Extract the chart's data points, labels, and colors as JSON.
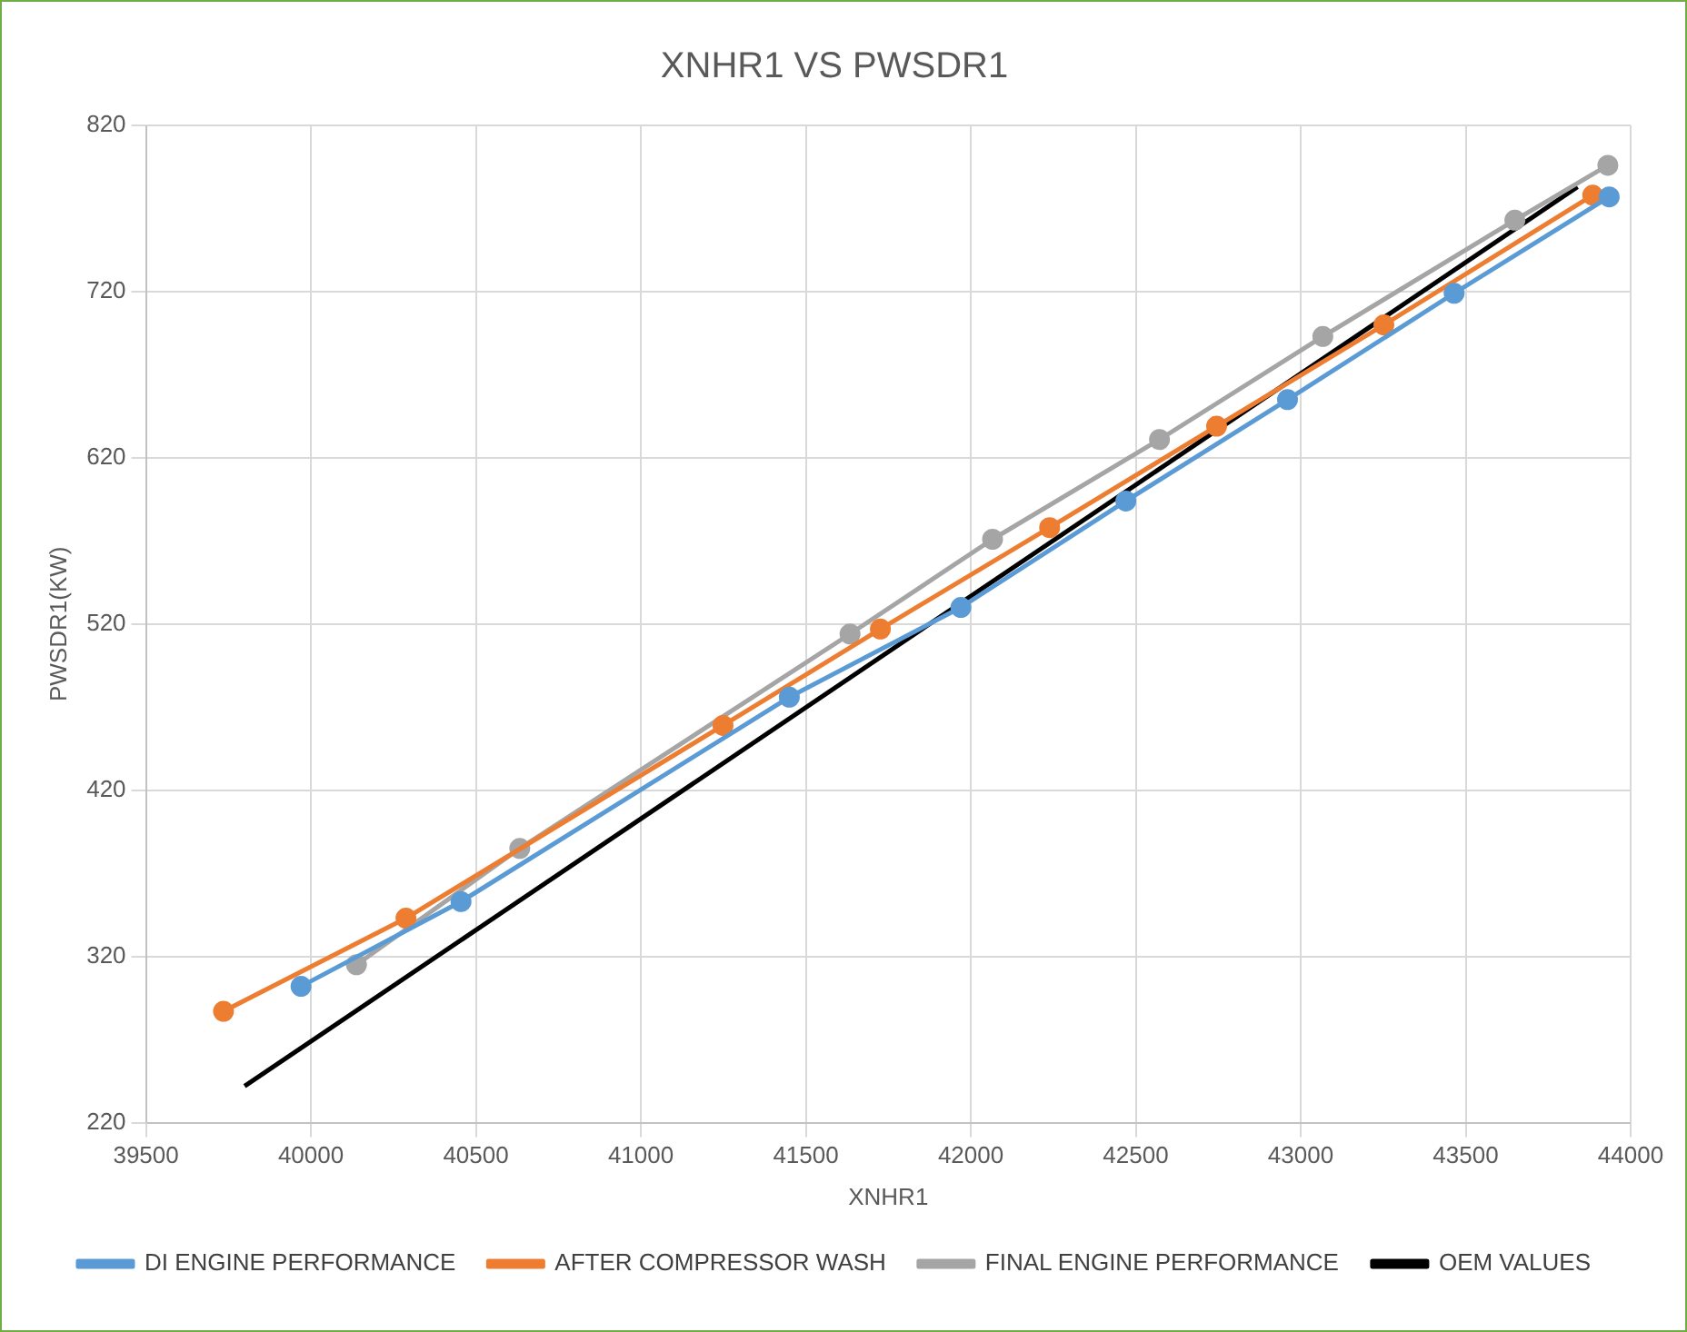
{
  "chart_data": {
    "type": "line",
    "title": "XNHR1 VS PWSDR1",
    "xlabel": "XNHR1",
    "ylabel": "PWSDR1(KW)",
    "xlim": [
      39500,
      44000
    ],
    "xticks": [
      39500,
      40000,
      40500,
      41000,
      41500,
      42000,
      42500,
      43000,
      43500,
      44000
    ],
    "ylim": [
      220,
      820
    ],
    "yticks": [
      220,
      320,
      420,
      520,
      620,
      720,
      820
    ],
    "grid": true,
    "legend": "bottom",
    "marker": "circle",
    "series": [
      {
        "name": "DI ENGINE PERFORMANCE",
        "color": "#5b9bd5",
        "x": [
          39970,
          40455,
          41450,
          41970,
          42470,
          42960,
          43465,
          43935
        ],
        "values": [
          302,
          353,
          476,
          530,
          594,
          655,
          719,
          777
        ]
      },
      {
        "name": "AFTER COMPRESSOR WASH",
        "color": "#ed7d31",
        "x": [
          39735,
          40288,
          41249,
          41726,
          42239,
          42745,
          43252,
          43885
        ],
        "values": [
          287,
          343,
          459,
          517,
          578,
          639,
          700,
          778
        ]
      },
      {
        "name": "FINAL ENGINE PERFORMANCE",
        "color": "#a5a5a5",
        "x": [
          40138,
          40633,
          41634,
          42066,
          42572,
          43067,
          43649,
          43931
        ],
        "values": [
          315,
          385,
          514,
          571,
          631,
          693,
          763,
          796
        ]
      },
      {
        "name": "OEM VALUES",
        "color": "#000000",
        "marker": "none",
        "x": [
          39799,
          43839
        ],
        "values": [
          242,
          783
        ]
      }
    ]
  }
}
